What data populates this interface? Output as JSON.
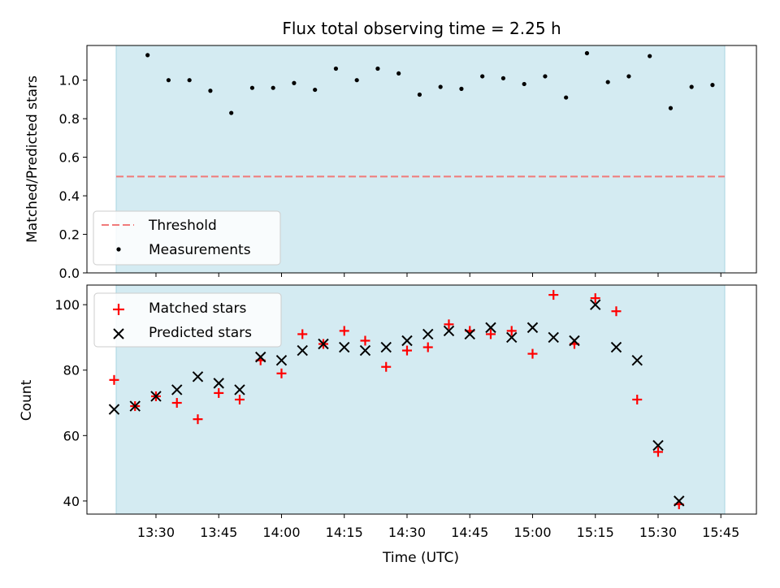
{
  "chart_data": [
    {
      "type": "scatter",
      "title": "Flux total observing time = 2.25 h",
      "ylabel": "Matched/Predicted stars",
      "ylim": [
        0,
        1.18
      ],
      "yticks": [
        0.0,
        0.2,
        0.4,
        0.6,
        0.8,
        1.0
      ],
      "ytick_labels": [
        "0.0",
        "0.2",
        "0.4",
        "0.6",
        "0.8",
        "1.0"
      ],
      "threshold": 0.5,
      "legend": {
        "position": "lower-left",
        "threshold_label": "Threshold",
        "measurements_label": "Measurements"
      },
      "colors": {
        "threshold": "#f07a7a",
        "points": "#000000",
        "shade": "#d4ebf2"
      },
      "x": [
        808,
        813,
        818,
        823,
        828,
        833,
        838,
        843,
        848,
        853,
        858,
        863,
        868,
        873,
        878,
        883,
        888,
        893,
        898,
        903,
        908,
        913,
        918,
        923,
        928,
        933,
        938,
        943
      ],
      "values": [
        1.13,
        1.0,
        1.0,
        0.945,
        0.83,
        0.96,
        0.96,
        0.985,
        0.95,
        1.06,
        1.0,
        1.06,
        1.035,
        0.925,
        0.965,
        0.955,
        1.02,
        1.01,
        0.98,
        1.02,
        0.91,
        1.14,
        0.99,
        1.02,
        1.125,
        0.855,
        0.965,
        0.975
      ]
    },
    {
      "type": "scatter",
      "xlabel": "Time (UTC)",
      "ylabel": "Count",
      "ylim": [
        36,
        106
      ],
      "yticks": [
        40,
        60,
        80,
        100
      ],
      "ytick_labels": [
        "40",
        "60",
        "80",
        "100"
      ],
      "xlim": [
        793.5,
        953.5
      ],
      "xticks": [
        810,
        825,
        840,
        855,
        870,
        885,
        900,
        915,
        930,
        945
      ],
      "xtick_labels": [
        "13:30",
        "13:45",
        "14:00",
        "14:15",
        "14:30",
        "14:45",
        "15:00",
        "15:15",
        "15:30",
        "15:45"
      ],
      "shade_range": [
        800,
        943
      ],
      "legend": {
        "position": "upper-left"
      },
      "colors": {
        "matched": "#ff0000",
        "predicted": "#000000",
        "shade": "#d4ebf2"
      },
      "x": [
        800,
        805,
        810,
        815,
        820,
        825,
        830,
        835,
        840,
        845,
        850,
        855,
        860,
        865,
        870,
        875,
        880,
        885,
        890,
        895,
        900,
        905,
        910,
        915,
        920,
        925,
        930,
        935,
        940
      ],
      "series": [
        {
          "name": "Matched stars",
          "values": [
            77,
            69,
            72,
            70,
            65,
            73,
            71,
            83,
            79,
            91,
            88,
            92,
            89,
            81,
            86,
            87,
            94,
            92,
            91,
            92,
            85,
            103,
            88,
            102,
            98,
            71,
            55,
            39,
            null
          ]
        },
        {
          "name": "Predicted stars",
          "values": [
            68,
            69,
            72,
            74,
            78,
            76,
            74,
            84,
            83,
            86,
            88,
            87,
            86,
            87,
            89,
            91,
            92,
            91,
            93,
            90,
            93,
            90,
            89,
            100,
            87,
            83,
            57,
            40,
            null
          ]
        }
      ]
    }
  ]
}
